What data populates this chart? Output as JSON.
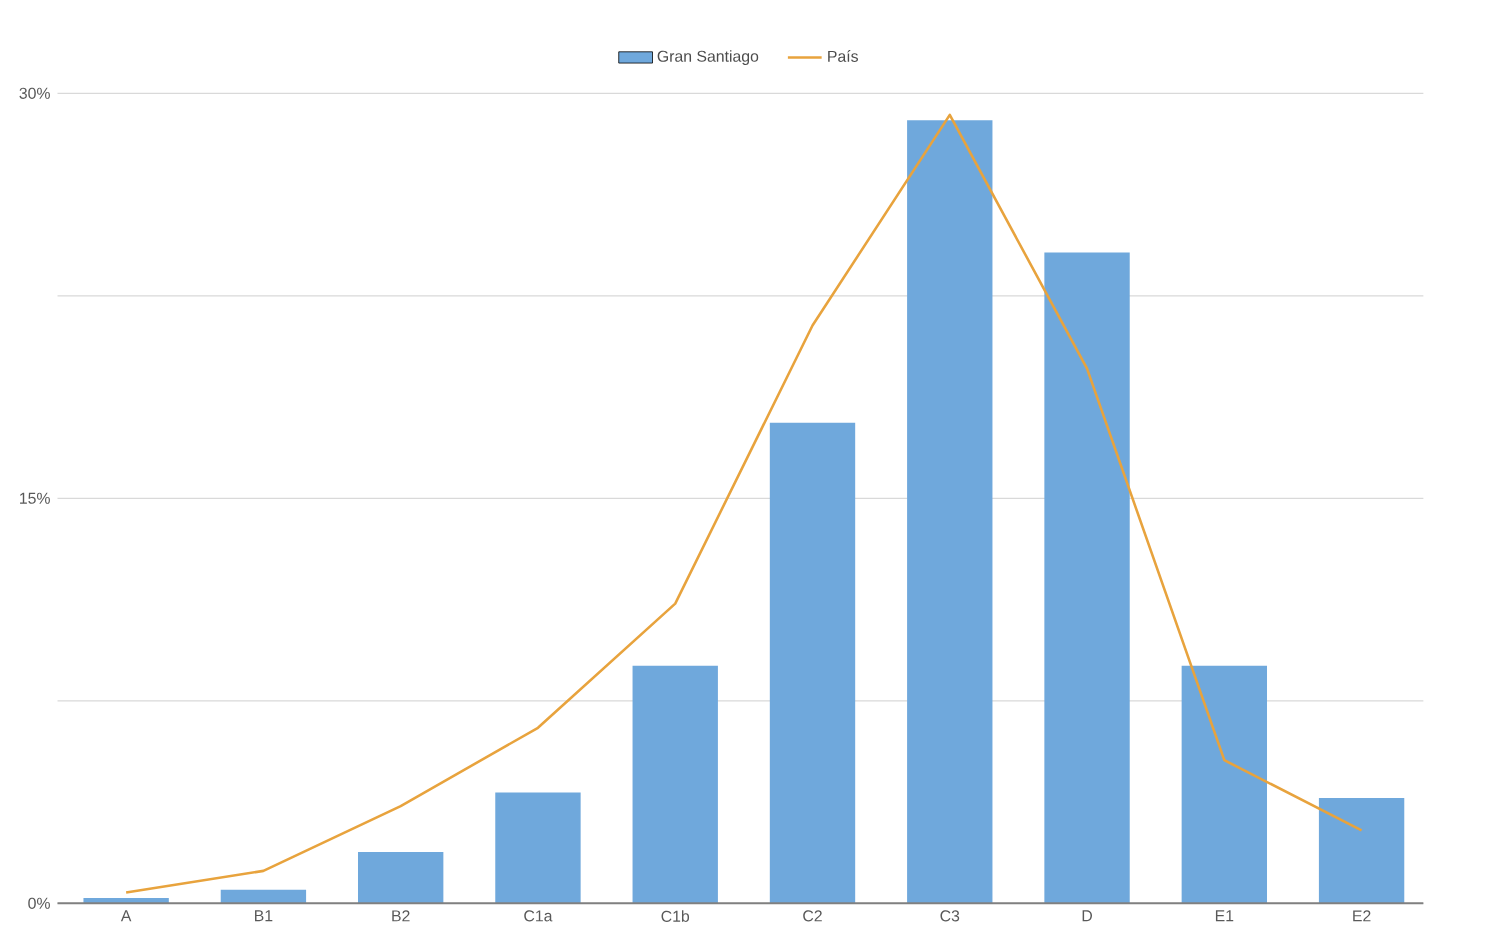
{
  "chart_data": {
    "type": "bar",
    "categories": [
      "A",
      "B1",
      "B2",
      "C1a",
      "C1b",
      "C2",
      "C3",
      "D",
      "E1",
      "E2"
    ],
    "series": [
      {
        "name": "Gran Santiago",
        "color": "#6fa8dc",
        "values": [
          0.2,
          0.5,
          1.9,
          4.1,
          8.8,
          17.8,
          29.0,
          24.1,
          8.8,
          3.9
        ]
      },
      {
        "name": "País",
        "type": "line",
        "color": "#e8a33d",
        "values": [
          0.4,
          1.2,
          3.6,
          6.5,
          11.1,
          21.4,
          29.2,
          19.8,
          5.3,
          2.7
        ]
      }
    ],
    "ylim": [
      0,
      30
    ],
    "yticks": [
      {
        "value": 0,
        "label": "0%"
      },
      {
        "value": 7.5,
        "label": null
      },
      {
        "value": 15,
        "label": "15%"
      },
      {
        "value": 22.5,
        "label": null
      },
      {
        "value": 30,
        "label": "30%"
      }
    ],
    "grid": "y",
    "legend": "top"
  }
}
